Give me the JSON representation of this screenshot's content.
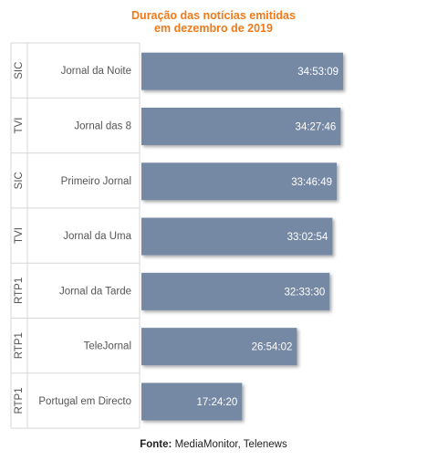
{
  "chart_data": {
    "type": "bar",
    "orientation": "horizontal",
    "title_lines": [
      "Duração das notícias emitidas",
      "em dezembro de 2019"
    ],
    "categories": [
      "Jornal da Noite",
      "Jornal das 8",
      "Primeiro Jornal",
      "Jornal da Uma",
      "Jornal da Tarde",
      "TeleJornal",
      "Portugal em Directo"
    ],
    "channels": [
      "SIC",
      "TVI",
      "SIC",
      "TVI",
      "RTP1",
      "RTP1",
      "RTP1"
    ],
    "value_labels": [
      "34:53:09",
      "34:27:46",
      "33:46:49",
      "33:02:54",
      "32:33:30",
      "26:54:02",
      "17:24:20"
    ],
    "values_hours": [
      34.886,
      34.463,
      33.78,
      33.048,
      32.558,
      26.901,
      17.406
    ],
    "xlim_hours": [
      0,
      34.886
    ],
    "bar_color": "#7489a4",
    "grid": false
  },
  "source": {
    "label": "Fonte:",
    "text": "MediaMonitor, Telenews"
  }
}
